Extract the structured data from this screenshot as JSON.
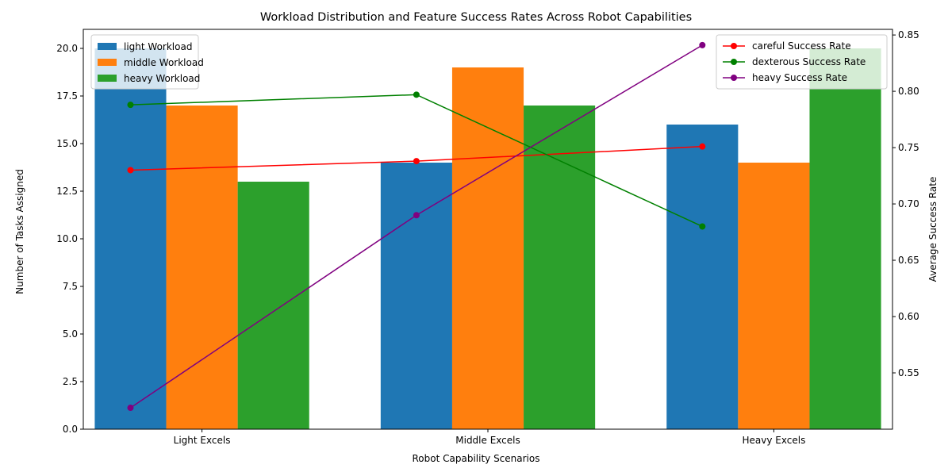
{
  "chart_data": {
    "type": "bar",
    "title": "Workload Distribution and Feature Success Rates Across Robot Capabilities",
    "xlabel": "Robot Capability Scenarios",
    "ylabel": "Number of Tasks Assigned",
    "y2label": "Average Success Rate",
    "categories": [
      "Light Excels",
      "Middle Excels",
      "Heavy Excels"
    ],
    "ylim": [
      0,
      21
    ],
    "y2lim": [
      0.5,
      0.855
    ],
    "yticks": [
      "0.0",
      "2.5",
      "5.0",
      "7.5",
      "10.0",
      "12.5",
      "15.0",
      "17.5",
      "20.0"
    ],
    "y2ticks": [
      "0.55",
      "0.60",
      "0.65",
      "0.70",
      "0.75",
      "0.80",
      "0.85"
    ],
    "bar_legend_position": "upper left",
    "line_legend_position": "upper right",
    "grid": false,
    "series": [
      {
        "name": "light Workload",
        "color": "#1f77b4",
        "values": [
          20,
          14,
          16
        ]
      },
      {
        "name": "middle Workload",
        "color": "#ff7f0e",
        "values": [
          17,
          19,
          14
        ]
      },
      {
        "name": "heavy Workload",
        "color": "#2ca02c",
        "values": [
          13,
          17,
          20
        ]
      }
    ],
    "line_series": [
      {
        "name": "careful Success Rate",
        "color": "#ff0000",
        "values": [
          0.73,
          0.738,
          0.751
        ]
      },
      {
        "name": "dexterous Success Rate",
        "color": "#008000",
        "values": [
          0.788,
          0.797,
          0.68
        ]
      },
      {
        "name": "heavy Success Rate",
        "color": "#800080",
        "values": [
          0.519,
          0.69,
          0.841
        ]
      }
    ]
  }
}
